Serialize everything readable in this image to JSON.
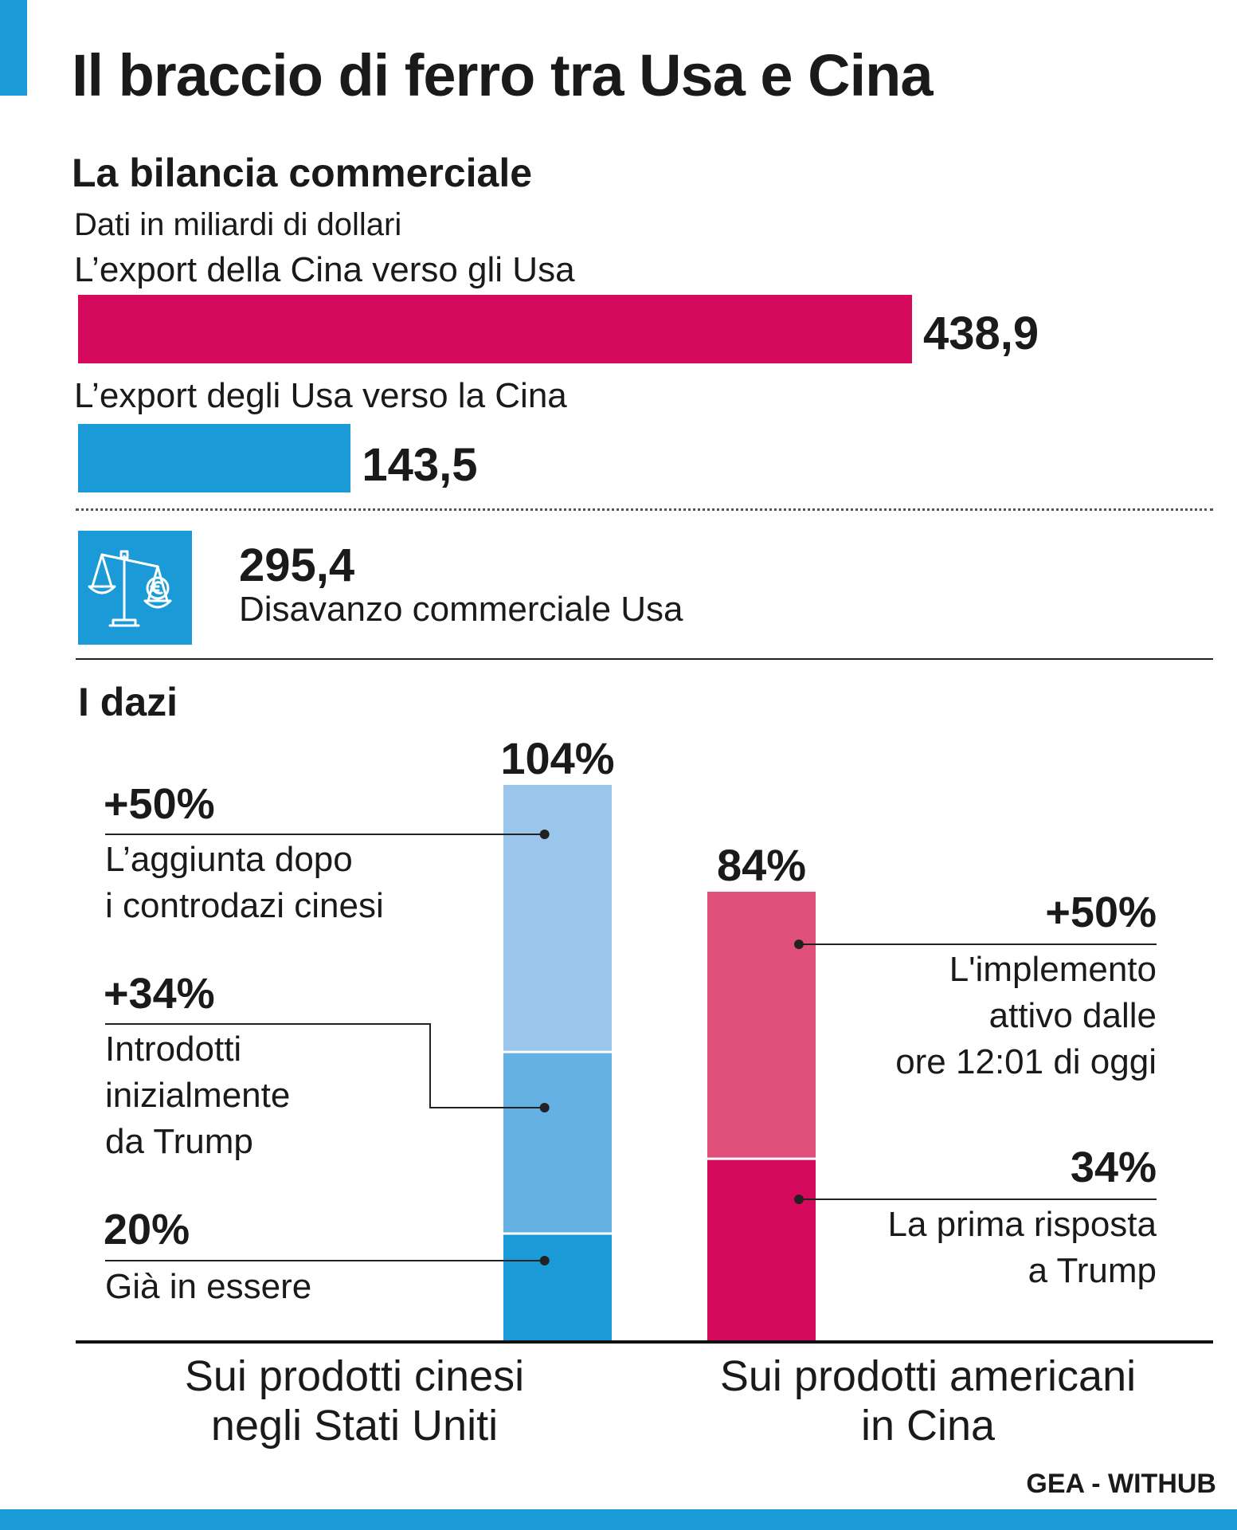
{
  "title": "Il braccio di ferro tra Usa e Cina",
  "colors": {
    "accent_blue": "#1a9bd8",
    "china_export": "#d60a5c",
    "usa_export": "#1a9bd8",
    "us_tariff_base": "#1a9bd8",
    "us_tariff_34": "#66b1e3",
    "us_tariff_50": "#9ac6ec",
    "cn_tariff_34": "#d60a5c",
    "cn_tariff_50": "#e0507a"
  },
  "trade": {
    "heading": "La bilancia commerciale",
    "subtitle": "Dati in miliardi di dollari",
    "china_label": "L’export della Cina verso gli Usa",
    "china_value": "438,9",
    "usa_label": "L’export degli Usa verso la Cina",
    "usa_value": "143,5",
    "deficit_value": "295,4",
    "deficit_label": "Disavanzo commerciale Usa",
    "icon": "balance-scale-euro-icon"
  },
  "tariffs": {
    "heading": "I dazi",
    "us_total_label": "104%",
    "cn_total_label": "84%",
    "us_segments": [
      {
        "value_label": "20%",
        "desc": [
          "Già in essere"
        ]
      },
      {
        "value_label": "+34%",
        "desc": [
          "Introdotti",
          "inizialmente",
          "da Trump"
        ]
      },
      {
        "value_label": "+50%",
        "desc": [
          "L’aggiunta dopo",
          "i controdazi cinesi"
        ]
      }
    ],
    "cn_segments": [
      {
        "value_label": "34%",
        "desc": [
          "La prima risposta",
          "a Trump"
        ]
      },
      {
        "value_label": "+50%",
        "desc": [
          "L'implemento",
          "attivo dalle",
          "ore 12:01 di oggi"
        ]
      }
    ],
    "us_category": [
      "Sui prodotti cinesi",
      "negli Stati Uniti"
    ],
    "cn_category": [
      "Sui prodotti americani",
      "in Cina"
    ]
  },
  "chart_data": [
    {
      "type": "bar",
      "title": "La bilancia commerciale",
      "subtitle": "Dati in miliardi di dollari",
      "categories": [
        "L’export della Cina verso gli Usa",
        "L’export degli Usa verso la Cina"
      ],
      "values": [
        438.9,
        143.5
      ],
      "orientation": "horizontal",
      "annotation": {
        "value": 295.4,
        "label": "Disavanzo commerciale Usa"
      }
    },
    {
      "type": "bar",
      "title": "I dazi",
      "stacked": true,
      "categories": [
        "Sui prodotti cinesi negli Stati Uniti",
        "Sui prodotti americani in Cina"
      ],
      "totals": [
        104,
        84
      ],
      "stacks": [
        [
          {
            "label": "Già in essere",
            "value": 20
          },
          {
            "label": "Introdotti inizialmente da Trump",
            "value": 34
          },
          {
            "label": "L’aggiunta dopo i controdazi cinesi",
            "value": 50
          }
        ],
        [
          {
            "label": "La prima risposta a Trump",
            "value": 34
          },
          {
            "label": "L'implemento attivo dalle ore 12:01 di oggi",
            "value": 50
          }
        ]
      ],
      "ylim": [
        0,
        104
      ]
    }
  ],
  "source": "GEA - WITHUB"
}
